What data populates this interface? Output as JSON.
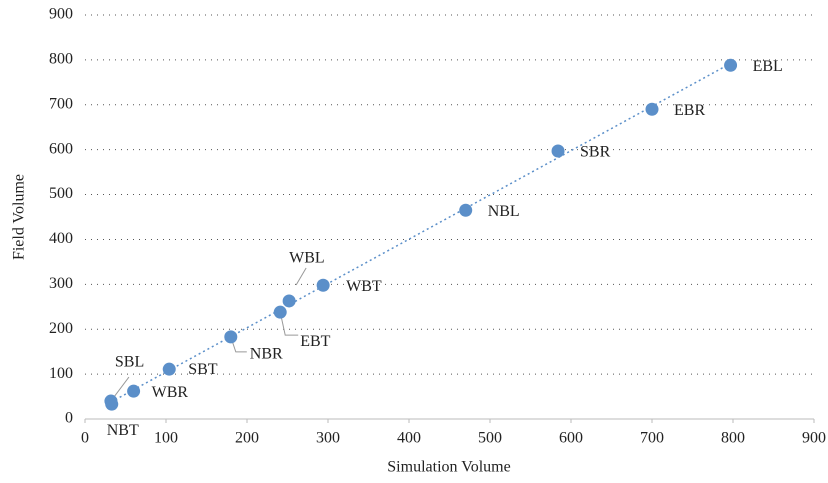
{
  "chart_data": {
    "type": "scatter",
    "xlabel": "Simulation Volume",
    "ylabel": "Field Volume",
    "labels": [
      "NBT",
      "SBL",
      "WBR",
      "SBT",
      "NBR",
      "EBT",
      "WBL",
      "WBT",
      "NBL",
      "SBR",
      "EBR",
      "EBL"
    ],
    "x": [
      33,
      32,
      60,
      104,
      180,
      241,
      252,
      294,
      470,
      584,
      700,
      797
    ],
    "values": [
      33,
      40,
      62,
      111,
      183,
      238,
      263,
      298,
      465,
      597,
      690,
      788
    ],
    "color": "#5b8fc9",
    "xlim": [
      0,
      900
    ],
    "xticks": [
      0,
      100,
      200,
      300,
      400,
      500,
      600,
      700,
      800,
      900
    ],
    "ylim": [
      0,
      900
    ],
    "yticks": [
      0,
      100,
      200,
      300,
      400,
      500,
      600,
      700,
      800,
      900
    ],
    "grid": true,
    "trendline": true
  }
}
